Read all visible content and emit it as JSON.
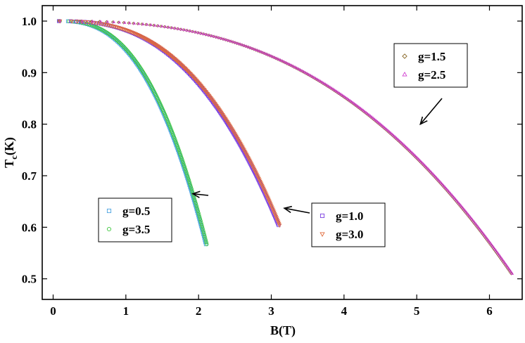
{
  "chart_data": {
    "type": "scatter",
    "xlabel": "B(T)",
    "ylabel_main": "T",
    "ylabel_sub": "c",
    "ylabel_tail": "(K)",
    "xlim": [
      -0.15,
      6.45
    ],
    "ylim": [
      0.46,
      1.03
    ],
    "xticks": [
      0,
      1,
      2,
      3,
      4,
      5,
      6
    ],
    "xtick_labels": [
      "0",
      "1",
      "2",
      "3",
      "4",
      "5",
      "6"
    ],
    "yticks": [
      0.5,
      0.6,
      0.7,
      0.8,
      0.9,
      1.0
    ],
    "ytick_labels": [
      "0.5",
      "0.6",
      "0.7",
      "0.8",
      "0.9",
      "1.0"
    ],
    "grid": false,
    "series": [
      {
        "name": "g=0.5",
        "marker": "square",
        "color": "#4aa3e0",
        "bmax": 2.1,
        "tmin": 0.567,
        "npoints": 160
      },
      {
        "name": "g=3.5",
        "marker": "circle",
        "color": "#3ec83e",
        "bmax": 2.1,
        "tmin": 0.567,
        "npoints": 160
      },
      {
        "name": "g=1.0",
        "marker": "square",
        "color": "#7a3de0",
        "bmax": 3.1,
        "tmin": 0.604,
        "npoints": 200
      },
      {
        "name": "g=3.0",
        "marker": "triangle-down",
        "color": "#e06a3a",
        "bmax": 3.1,
        "tmin": 0.604,
        "npoints": 200
      },
      {
        "name": "g=1.5",
        "marker": "diamond",
        "color": "#8a6a2a",
        "bmax": 6.3,
        "tmin": 0.51,
        "npoints": 240
      },
      {
        "name": "g=2.5",
        "marker": "triangle-up",
        "color": "#d040d0",
        "bmax": 6.3,
        "tmin": 0.51,
        "npoints": 240
      }
    ],
    "legends": [
      {
        "entries": [
          "g=1.5",
          "g=2.5"
        ],
        "arrow_to": [
          5.05,
          0.8
        ]
      },
      {
        "entries": [
          "g=0.5",
          "g=3.5"
        ],
        "arrow_to": [
          1.92,
          0.665
        ]
      },
      {
        "entries": [
          "g=1.0",
          "g=3.0"
        ],
        "arrow_to": [
          3.18,
          0.637
        ]
      }
    ]
  }
}
